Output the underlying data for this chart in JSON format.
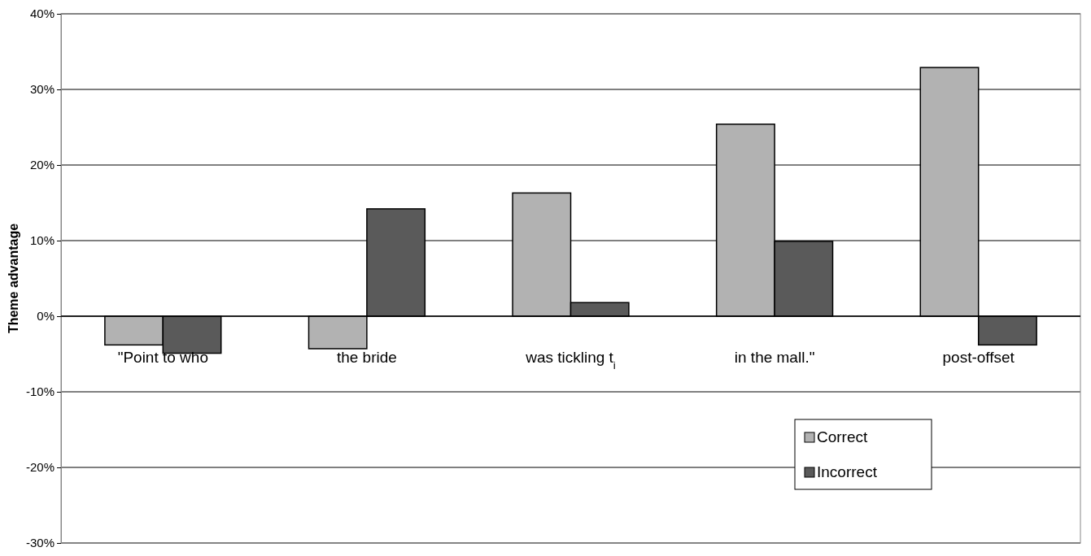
{
  "chart_data": {
    "type": "bar",
    "ylabel": "Theme advantage",
    "categories": [
      "\"Point to who",
      "the bride",
      "was tickling t$_{i}$",
      "in the mall.\"",
      "post-offset"
    ],
    "series": [
      {
        "name": "Correct",
        "color": "#b2b2b2",
        "values": [
          -3.8,
          -4.3,
          16.3,
          25.4,
          32.9
        ]
      },
      {
        "name": "Incorrect",
        "color": "#5a5a5a",
        "values": [
          -4.9,
          14.2,
          1.8,
          9.9,
          -3.8
        ]
      }
    ],
    "ylim": [
      -30,
      40
    ],
    "yticks": [
      {
        "value": -30,
        "label": "-30%"
      },
      {
        "value": -20,
        "label": "-20%"
      },
      {
        "value": -10,
        "label": "-10%"
      },
      {
        "value": 0,
        "label": "0%"
      },
      {
        "value": 10,
        "label": "10%"
      },
      {
        "value": 20,
        "label": "20%"
      },
      {
        "value": 30,
        "label": "30%"
      },
      {
        "value": 40,
        "label": "40%"
      }
    ],
    "grid": "y",
    "legend": "bottom right"
  }
}
